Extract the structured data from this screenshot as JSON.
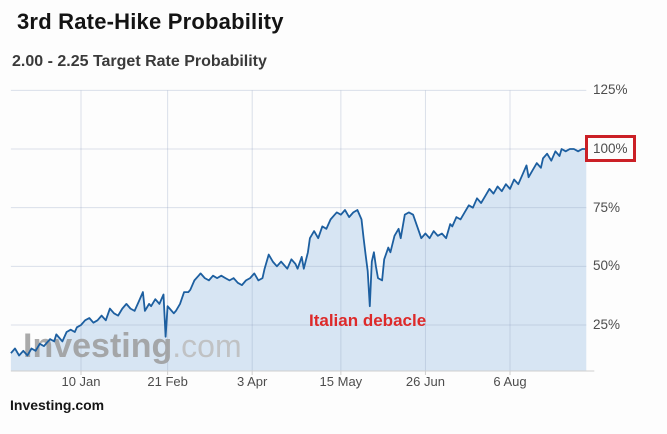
{
  "header": {
    "title": "3rd Rate-Hike Probability",
    "subtitle": "2.00 - 2.25 Target Rate Probability"
  },
  "watermark": {
    "bold": "Investing",
    "light": ".com"
  },
  "source_label": "Investing.com",
  "annotation": {
    "text": "Italian debacle"
  },
  "highlight": {
    "label": "100%",
    "box_color": "#cb2026"
  },
  "chart_data": {
    "type": "area",
    "title": "3rd Rate-Hike Probability",
    "series_name": "2.00 - 2.25 Target Rate Probability",
    "x_unit": "days since 2017-12-07",
    "x_ticks": [
      {
        "day": 34,
        "label": "10 Jan"
      },
      {
        "day": 76,
        "label": "21 Feb"
      },
      {
        "day": 117,
        "label": "3 Apr"
      },
      {
        "day": 160,
        "label": "15 May"
      },
      {
        "day": 201,
        "label": "26 Jun"
      },
      {
        "day": 242,
        "label": "6 Aug"
      }
    ],
    "y_ticks": [
      25,
      50,
      75,
      100,
      125
    ],
    "y_tick_suffix": "%",
    "ylim": [
      5,
      130
    ],
    "xlim_days": [
      0,
      279
    ],
    "grid": true,
    "legend": false,
    "colors": {
      "line": "#1d5fa0",
      "fill": "#d7e5f3",
      "grid": "rgba(140,155,190,0.30)",
      "axis": "#cfcfcf"
    },
    "annotations": [
      {
        "text": "Italian debacle",
        "day": 174,
        "value": 33
      }
    ],
    "points": [
      [
        0,
        13
      ],
      [
        2,
        15
      ],
      [
        4,
        12
      ],
      [
        6,
        14
      ],
      [
        8,
        12
      ],
      [
        10,
        15
      ],
      [
        12,
        14
      ],
      [
        14,
        17
      ],
      [
        16,
        16
      ],
      [
        19,
        19
      ],
      [
        21,
        18
      ],
      [
        22,
        21
      ],
      [
        24,
        19
      ],
      [
        25,
        18
      ],
      [
        27,
        22
      ],
      [
        29,
        23
      ],
      [
        31,
        22
      ],
      [
        32,
        24
      ],
      [
        34,
        25
      ],
      [
        36,
        27
      ],
      [
        38,
        28
      ],
      [
        40,
        26
      ],
      [
        42,
        27
      ],
      [
        44,
        29
      ],
      [
        46,
        27
      ],
      [
        48,
        32
      ],
      [
        50,
        30
      ],
      [
        52,
        29
      ],
      [
        54,
        32
      ],
      [
        56,
        34
      ],
      [
        58,
        32
      ],
      [
        60,
        31
      ],
      [
        62,
        35
      ],
      [
        64,
        39
      ],
      [
        65,
        31
      ],
      [
        67,
        34
      ],
      [
        68,
        33
      ],
      [
        70,
        36
      ],
      [
        72,
        34
      ],
      [
        74,
        38
      ],
      [
        75,
        20
      ],
      [
        76,
        33
      ],
      [
        77,
        32
      ],
      [
        79,
        30
      ],
      [
        80,
        31
      ],
      [
        82,
        34
      ],
      [
        84,
        39
      ],
      [
        86,
        39
      ],
      [
        87,
        40
      ],
      [
        89,
        44
      ],
      [
        91,
        46
      ],
      [
        92,
        47
      ],
      [
        94,
        45
      ],
      [
        96,
        44
      ],
      [
        98,
        46
      ],
      [
        100,
        45
      ],
      [
        102,
        46
      ],
      [
        104,
        45
      ],
      [
        106,
        44
      ],
      [
        108,
        45
      ],
      [
        110,
        43
      ],
      [
        112,
        42
      ],
      [
        114,
        44
      ],
      [
        116,
        45
      ],
      [
        118,
        47
      ],
      [
        120,
        44
      ],
      [
        122,
        45
      ],
      [
        123,
        49
      ],
      [
        125,
        55
      ],
      [
        127,
        52
      ],
      [
        129,
        50
      ],
      [
        131,
        52
      ],
      [
        133,
        50
      ],
      [
        134,
        49
      ],
      [
        136,
        53
      ],
      [
        138,
        51
      ],
      [
        139,
        49
      ],
      [
        141,
        54
      ],
      [
        142,
        49
      ],
      [
        144,
        56
      ],
      [
        145,
        62
      ],
      [
        147,
        65
      ],
      [
        149,
        62
      ],
      [
        151,
        67
      ],
      [
        153,
        66
      ],
      [
        155,
        70
      ],
      [
        157,
        72
      ],
      [
        158,
        73
      ],
      [
        160,
        72
      ],
      [
        162,
        74
      ],
      [
        164,
        71
      ],
      [
        166,
        73
      ],
      [
        168,
        74
      ],
      [
        170,
        70
      ],
      [
        171,
        62
      ],
      [
        172,
        55
      ],
      [
        173,
        48
      ],
      [
        174,
        33
      ],
      [
        175,
        52
      ],
      [
        176,
        56
      ],
      [
        177,
        50
      ],
      [
        178,
        45
      ],
      [
        180,
        44
      ],
      [
        181,
        53
      ],
      [
        183,
        58
      ],
      [
        184,
        56
      ],
      [
        186,
        63
      ],
      [
        188,
        66
      ],
      [
        189,
        62
      ],
      [
        191,
        72
      ],
      [
        193,
        73
      ],
      [
        195,
        72
      ],
      [
        197,
        67
      ],
      [
        199,
        62
      ],
      [
        201,
        64
      ],
      [
        203,
        62
      ],
      [
        205,
        65
      ],
      [
        207,
        63
      ],
      [
        209,
        64
      ],
      [
        211,
        62
      ],
      [
        213,
        68
      ],
      [
        214,
        67
      ],
      [
        216,
        71
      ],
      [
        218,
        70
      ],
      [
        220,
        73
      ],
      [
        222,
        76
      ],
      [
        224,
        75
      ],
      [
        226,
        79
      ],
      [
        228,
        77
      ],
      [
        230,
        80
      ],
      [
        232,
        83
      ],
      [
        234,
        81
      ],
      [
        236,
        84
      ],
      [
        238,
        82
      ],
      [
        240,
        85
      ],
      [
        242,
        83
      ],
      [
        244,
        87
      ],
      [
        246,
        85
      ],
      [
        248,
        89
      ],
      [
        250,
        93
      ],
      [
        251,
        88
      ],
      [
        253,
        91
      ],
      [
        255,
        94
      ],
      [
        257,
        92
      ],
      [
        258,
        96
      ],
      [
        260,
        98
      ],
      [
        262,
        95
      ],
      [
        264,
        99
      ],
      [
        266,
        97
      ],
      [
        267,
        100
      ],
      [
        269,
        99
      ],
      [
        271,
        100
      ],
      [
        273,
        100
      ],
      [
        275,
        99
      ],
      [
        277,
        100
      ],
      [
        279,
        100
      ]
    ]
  }
}
